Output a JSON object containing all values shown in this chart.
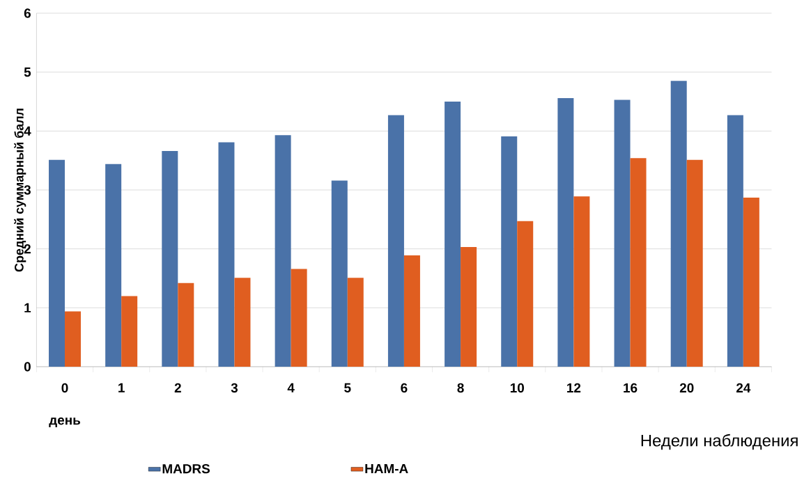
{
  "chart_data": {
    "type": "bar",
    "ylabel": "Средний суммарный балл",
    "xlabel": "Недели наблюдения",
    "categories": [
      "0",
      "1",
      "2",
      "3",
      "4",
      "5",
      "6",
      "8",
      "10",
      "12",
      "16",
      "20",
      "24"
    ],
    "series": [
      {
        "name": "MADRS",
        "color": "#4a72a8",
        "values": [
          3.51,
          3.44,
          3.66,
          3.81,
          3.93,
          3.16,
          4.27,
          4.5,
          3.91,
          4.56,
          4.53,
          4.85,
          4.27
        ]
      },
      {
        "name": "HAM-A",
        "color": "#e05e20",
        "values": [
          0.94,
          1.2,
          1.42,
          1.51,
          1.66,
          1.51,
          1.89,
          2.03,
          2.47,
          2.89,
          3.54,
          3.51,
          2.87
        ]
      }
    ],
    "annotations": [
      "день"
    ],
    "ylim": [
      0,
      6
    ],
    "yticks": [
      0,
      1,
      2,
      3,
      4,
      5,
      6
    ],
    "grid": "y",
    "legend": "bottom"
  }
}
